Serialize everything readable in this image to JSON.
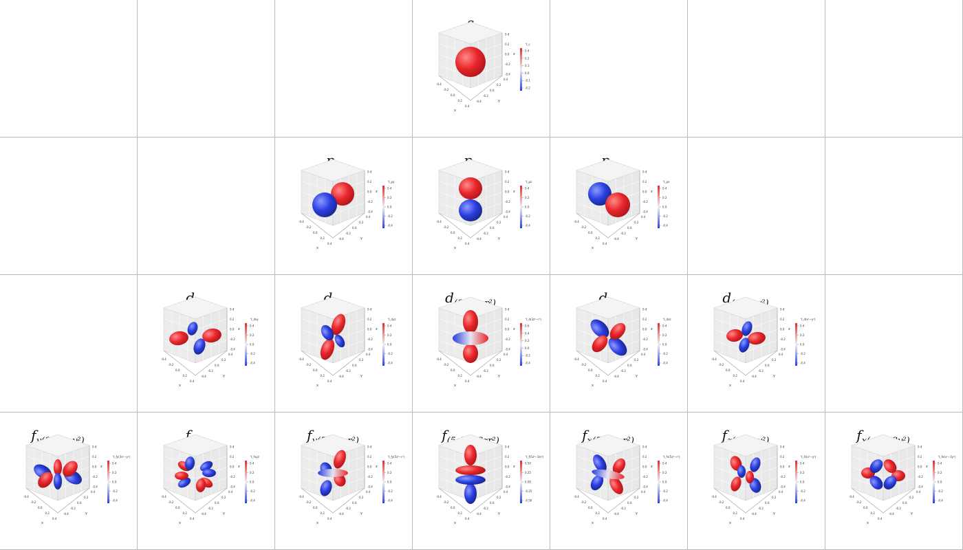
{
  "figure": {
    "rows": [
      [
        {
          "label": "",
          "sub": ""
        },
        {
          "label": "",
          "sub": ""
        },
        {
          "label": "",
          "sub": ""
        },
        {
          "label": "s",
          "sub": "",
          "cbar": "Y_s",
          "ticks": [
            "0.4",
            "0.2",
            "0.1",
            "0.0",
            "-0.1",
            "-0.2"
          ],
          "shape": "s"
        },
        {
          "label": "",
          "sub": ""
        },
        {
          "label": "",
          "sub": ""
        },
        {
          "label": "",
          "sub": ""
        }
      ],
      [
        {
          "label": "",
          "sub": ""
        },
        {
          "label": "",
          "sub": ""
        },
        {
          "label": "p",
          "sub": "y",
          "cbar": "Y_py",
          "ticks": [
            "0.4",
            "0.2",
            "0.0",
            "-0.2",
            "-0.4"
          ],
          "shape": "py"
        },
        {
          "label": "p",
          "sub": "z",
          "cbar": "Y_pz",
          "ticks": [
            "0.4",
            "0.2",
            "0.0",
            "-0.2",
            "-0.4"
          ],
          "shape": "pz"
        },
        {
          "label": "p",
          "sub": "x",
          "cbar": "Y_px",
          "ticks": [
            "0.4",
            "0.2",
            "0.0",
            "-0.2",
            "-0.4"
          ],
          "shape": "px"
        },
        {
          "label": "",
          "sub": ""
        },
        {
          "label": "",
          "sub": ""
        }
      ],
      [
        {
          "label": "",
          "sub": ""
        },
        {
          "label": "d",
          "sub": "xy",
          "cbar": "Y_dxy",
          "ticks": [
            "0.4",
            "0.2",
            "0.0",
            "-0.2",
            "-0.4"
          ],
          "shape": "dxy"
        },
        {
          "label": "d",
          "sub": "yz",
          "cbar": "Y_dyz",
          "ticks": [
            "0.4",
            "0.2",
            "0.0",
            "-0.2",
            "-0.4"
          ],
          "shape": "dyz"
        },
        {
          "label": "d",
          "sub": "(3z² − r²)",
          "cbar": "Y_d(3z²−r²)",
          "ticks": [
            "0.6",
            "0.4",
            "0.2",
            "0.0",
            "-0.2",
            "-0.4"
          ],
          "shape": "dz2"
        },
        {
          "label": "d",
          "sub": "xz",
          "cbar": "Y_dxz",
          "ticks": [
            "0.4",
            "0.2",
            "0.0",
            "-0.2",
            "-0.4"
          ],
          "shape": "dxz"
        },
        {
          "label": "d",
          "sub": "(x² − y²)",
          "cbar": "Y_d(x²−y²)",
          "ticks": [
            "0.4",
            "0.2",
            "0.0",
            "-0.2",
            "-0.4"
          ],
          "shape": "dx2y2"
        },
        {
          "label": "",
          "sub": ""
        }
      ],
      [
        {
          "label": "f",
          "sub": "y(3x² − y²)",
          "cbar": "Y_fy(3x²−y²)",
          "ticks": [
            "0.4",
            "0.2",
            "0.0",
            "-0.2",
            "-0.4"
          ],
          "shape": "f6"
        },
        {
          "label": "f",
          "sub": "xyz",
          "cbar": "Y_fxyz",
          "ticks": [
            "0.4",
            "0.2",
            "0.0",
            "-0.2",
            "-0.4"
          ],
          "shape": "fxyz"
        },
        {
          "label": "f",
          "sub": "y(5z² − r²)",
          "cbar": "Y_fy(5z²−r²)",
          "ticks": [
            "0.4",
            "0.2",
            "0.0",
            "-0.2",
            "-0.4"
          ],
          "shape": "fy5z2"
        },
        {
          "label": "f",
          "sub": "(5z³ − 3zr²)",
          "cbar": "Y_f(5z³−3zr²)",
          "ticks": [
            "0.50",
            "0.25",
            "0.00",
            "-0.25",
            "-0.50"
          ],
          "shape": "fz3"
        },
        {
          "label": "f",
          "sub": "x(5z² − r²)",
          "cbar": "Y_fx(5z²−r²)",
          "ticks": [
            "0.4",
            "0.2",
            "0.0",
            "-0.2",
            "-0.4"
          ],
          "shape": "fx5z2"
        },
        {
          "label": "f",
          "sub": "z(x² − y²)",
          "cbar": "Y_fz(x²−y²)",
          "ticks": [
            "0.4",
            "0.2",
            "0.0",
            "-0.2",
            "-0.4"
          ],
          "shape": "fz"
        },
        {
          "label": "f",
          "sub": "x(x² − 3y²)",
          "cbar": "Y_fx(x²−3y²)",
          "ticks": [
            "0.4",
            "0.2",
            "0.0",
            "-0.2",
            "-0.4"
          ],
          "shape": "f6b"
        }
      ]
    ],
    "axis_ticks": [
      "-0.4",
      "-0.2",
      "0.0",
      "0.2",
      "0.4"
    ],
    "axis_labels": {
      "x": "x",
      "y": "y",
      "z": "z"
    },
    "colors": {
      "positive": "#e8262b",
      "negative": "#2a3fe0",
      "mid": "#e6e6f0",
      "border": "#b8b8b8",
      "pane": "#f2f2f2"
    }
  }
}
